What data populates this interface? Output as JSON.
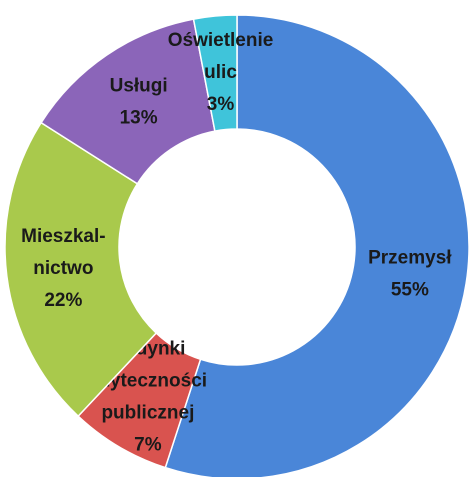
{
  "chart_data": {
    "type": "donut",
    "categories": [
      [
        "Przemysł"
      ],
      [
        "Budynki",
        "użyteczności",
        "publicznej"
      ],
      [
        "Mieszkal-",
        "nictwo"
      ],
      [
        "Usługi"
      ],
      [
        "Oświetlenie",
        "ulic"
      ]
    ],
    "values": [
      55,
      7,
      22,
      13,
      3
    ],
    "value_labels": [
      "55%",
      "7%",
      "22%",
      "13%",
      "3%"
    ],
    "colors": [
      "#4a86d8",
      "#d9534f",
      "#a9c94c",
      "#8b65b9",
      "#3fc4da"
    ]
  }
}
